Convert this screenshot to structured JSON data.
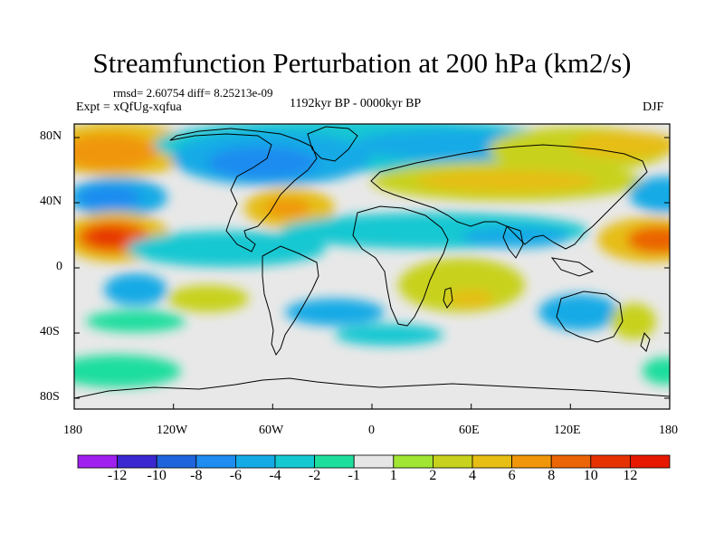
{
  "title": "Streamfunction Perturbation at 200 hPa (km2/s)",
  "stats_line": "rmsd= 2.60754  diff= 8.25213e-09",
  "experiment": "Expt = xQfUg-xqfua",
  "period": "1192kyr BP - 0000kyr BP",
  "season": "DJF",
  "lat_ticks": [
    "80N",
    "40N",
    "0",
    "40S",
    "80S"
  ],
  "lon_ticks": [
    "180",
    "120W",
    "60W",
    "0",
    "60E",
    "120E",
    "180"
  ],
  "colorbar": {
    "labels": [
      "-12",
      "-10",
      "-8",
      "-6",
      "-4",
      "-2",
      "-1",
      "1",
      "2",
      "4",
      "6",
      "8",
      "10",
      "12"
    ],
    "colors": [
      "#a020f0",
      "#3c28d0",
      "#1e64dc",
      "#1e8cf0",
      "#14aae6",
      "#14c8d2",
      "#1ede9e",
      "#e6e6e6",
      "#a0e632",
      "#c8d21e",
      "#e6be14",
      "#f0960a",
      "#eb6405",
      "#e63200",
      "#e61900"
    ]
  }
}
